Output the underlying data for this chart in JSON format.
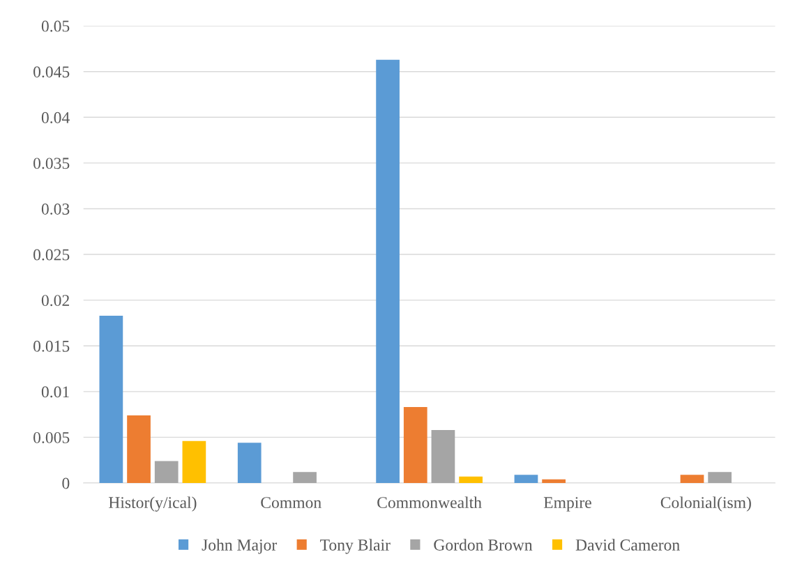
{
  "chart_data": {
    "type": "bar",
    "categories": [
      "Histor(y/ical)",
      "Common",
      "Commonwealth",
      "Empire",
      "Colonial(ism)"
    ],
    "series": [
      {
        "name": "John Major",
        "color": "#5b9bd5",
        "values": [
          0.0183,
          0.0044,
          0.0463,
          0.0009,
          0
        ]
      },
      {
        "name": "Tony Blair",
        "color": "#ed7d31",
        "values": [
          0.0074,
          0,
          0.0083,
          0.0004,
          0.0009
        ]
      },
      {
        "name": "Gordon Brown",
        "color": "#a5a5a5",
        "values": [
          0.0024,
          0.0012,
          0.0058,
          0,
          0.0012
        ]
      },
      {
        "name": "David Cameron",
        "color": "#ffc000",
        "values": [
          0.0046,
          0,
          0.0007,
          0,
          0
        ]
      }
    ],
    "ylim": [
      0,
      0.05
    ],
    "yticks": [
      0,
      0.005,
      0.01,
      0.015,
      0.02,
      0.025,
      0.03,
      0.035,
      0.04,
      0.045,
      0.05
    ],
    "grid": "y",
    "legend": "bottom"
  }
}
